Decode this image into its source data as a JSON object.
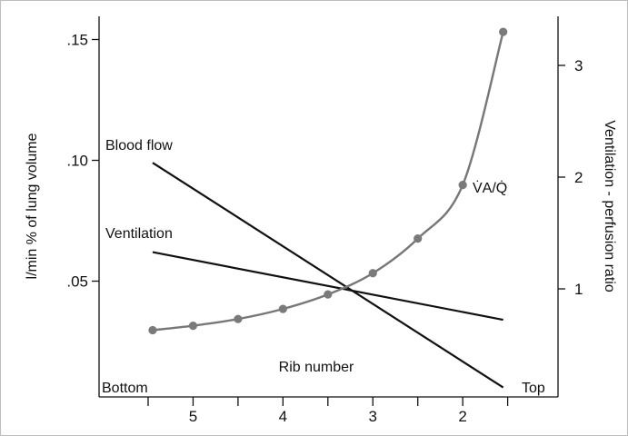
{
  "chart_data": {
    "type": "line",
    "xlabel": "Rib number",
    "ylabel": "l/min % of lung volume",
    "y2label": "Ventilation - perfusion ratio",
    "x_end_labels": {
      "left": "Bottom",
      "right": "Top"
    },
    "x_ticks": [
      {
        "value": 5.5,
        "label": ""
      },
      {
        "value": 5,
        "label": "5"
      },
      {
        "value": 4.5,
        "label": ""
      },
      {
        "value": 4,
        "label": "4"
      },
      {
        "value": 3.5,
        "label": ""
      },
      {
        "value": 3,
        "label": "3"
      },
      {
        "value": 2.5,
        "label": ""
      },
      {
        "value": 2,
        "label": "2"
      },
      {
        "value": 1.5,
        "label": ""
      }
    ],
    "y_ticks": [
      {
        "value": 0.15,
        "label": ".15"
      },
      {
        "value": 0.1,
        "label": ".10"
      },
      {
        "value": 0.05,
        "label": ".05"
      }
    ],
    "y2_ticks": [
      {
        "value": 3,
        "label": "3"
      },
      {
        "value": 2,
        "label": "2"
      },
      {
        "value": 1,
        "label": "1"
      }
    ],
    "series": [
      {
        "name": "Blood flow",
        "axis": "left",
        "points": [
          {
            "x": 5.45,
            "y": 0.099
          },
          {
            "x": 1.55,
            "y": 0.006
          }
        ]
      },
      {
        "name": "Ventilation",
        "axis": "left",
        "points": [
          {
            "x": 5.45,
            "y": 0.062
          },
          {
            "x": 1.55,
            "y": 0.034
          }
        ]
      },
      {
        "name": "V̇A/Q̇",
        "axis": "right",
        "markers": true,
        "points": [
          {
            "x": 5.45,
            "y": 0.63
          },
          {
            "x": 5.0,
            "y": 0.67
          },
          {
            "x": 4.5,
            "y": 0.73
          },
          {
            "x": 4.0,
            "y": 0.82
          },
          {
            "x": 3.5,
            "y": 0.95
          },
          {
            "x": 3.0,
            "y": 1.14
          },
          {
            "x": 2.5,
            "y": 1.45
          },
          {
            "x": 2.0,
            "y": 1.93
          },
          {
            "x": 1.55,
            "y": 3.3
          }
        ]
      }
    ],
    "colors": {
      "lines": "#111111",
      "curve": "#777777",
      "markers": "#7a7a7a"
    }
  }
}
